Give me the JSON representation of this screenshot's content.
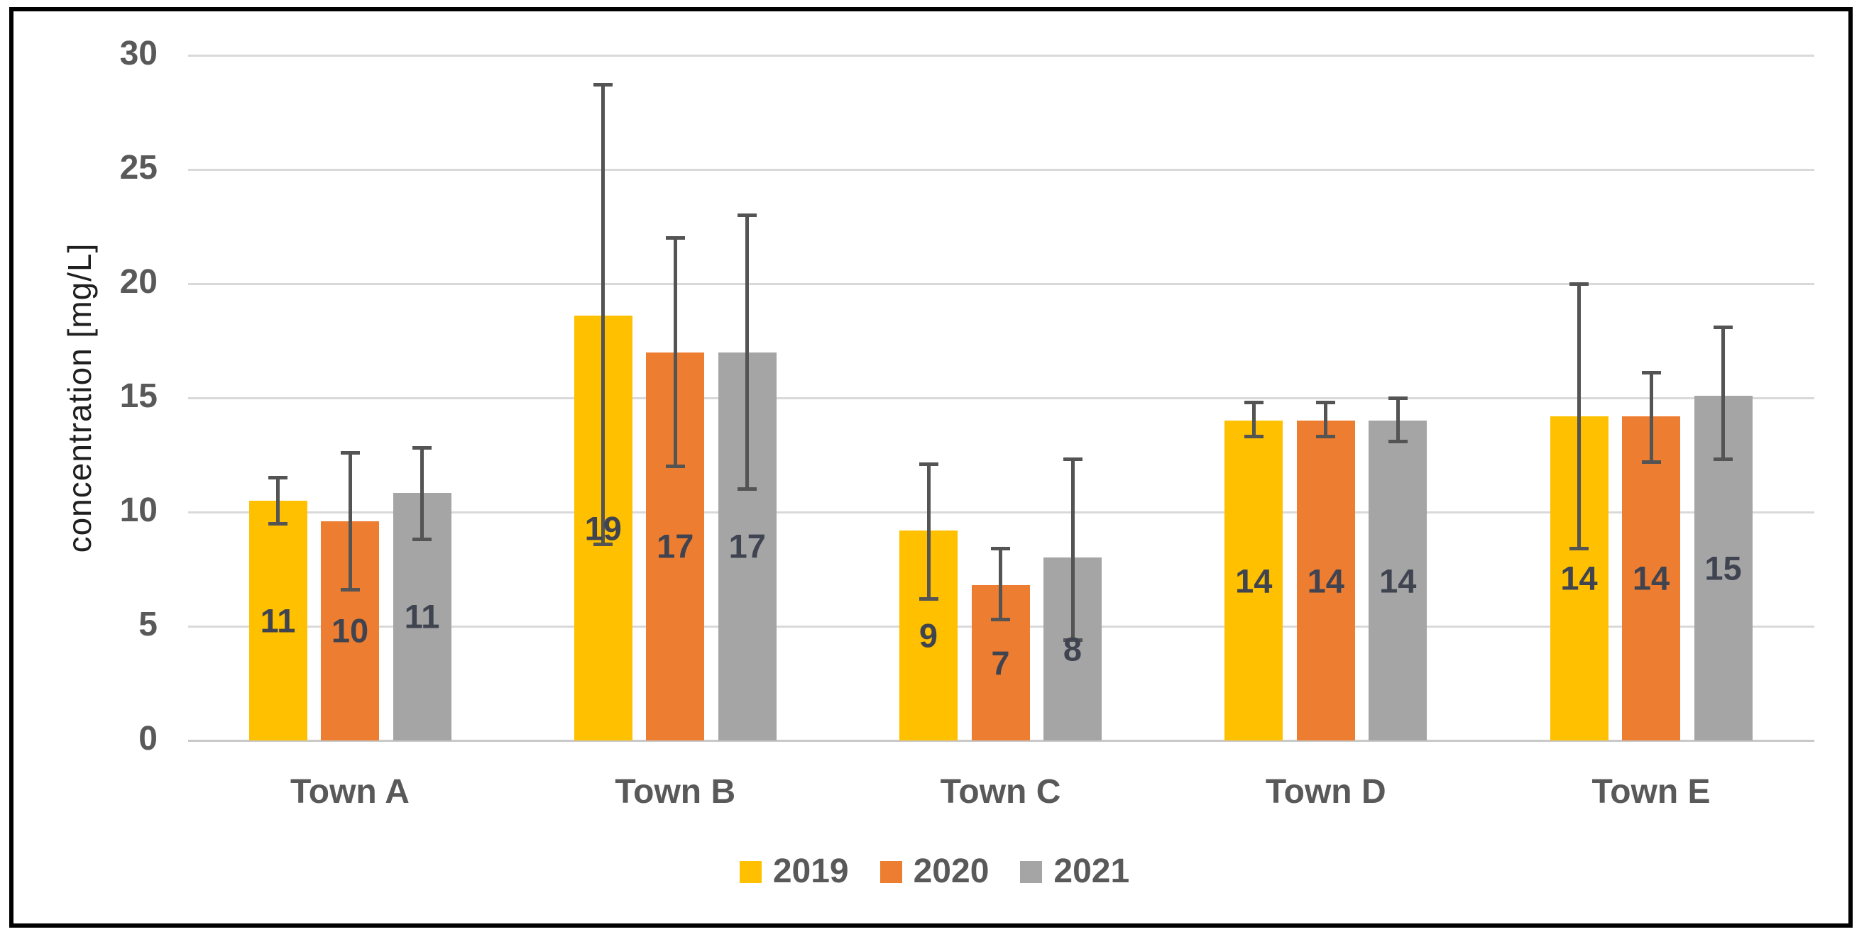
{
  "chart_data": {
    "type": "bar",
    "title": "",
    "xlabel": "",
    "ylabel": "concentration [mg/L]",
    "ylim": [
      0,
      30
    ],
    "ytick_step": 5,
    "ytick_labels": [
      "0",
      "5",
      "10",
      "15",
      "20",
      "25",
      "30"
    ],
    "grid": true,
    "legend_position": "bottom-center",
    "categories": [
      "Town A",
      "Town B",
      "Town C",
      "Town D",
      "Town E"
    ],
    "series": [
      {
        "name": "2019",
        "color": "#FFC000",
        "values": [
          10.5,
          18.6,
          9.2,
          14.0,
          14.2
        ],
        "data_labels": [
          "11",
          "19",
          "9",
          "14",
          "14"
        ],
        "error_low": [
          9.5,
          8.6,
          6.2,
          13.3,
          8.4
        ],
        "error_high": [
          11.5,
          28.7,
          12.1,
          14.8,
          20.0
        ]
      },
      {
        "name": "2020",
        "color": "#ED7D31",
        "values": [
          9.6,
          17.0,
          6.8,
          14.0,
          14.2
        ],
        "data_labels": [
          "10",
          "17",
          "7",
          "14",
          "14"
        ],
        "error_low": [
          6.6,
          12.0,
          5.3,
          13.3,
          12.2
        ],
        "error_high": [
          12.6,
          22.0,
          8.4,
          14.8,
          16.1
        ]
      },
      {
        "name": "2021",
        "color": "#A5A5A5",
        "values": [
          10.85,
          17.0,
          8.0,
          14.0,
          15.1
        ],
        "data_labels": [
          "11",
          "17",
          "8",
          "14",
          "15"
        ],
        "error_low": [
          8.8,
          11.0,
          4.4,
          13.1,
          12.3
        ],
        "error_high": [
          12.8,
          23.0,
          12.3,
          15.0,
          18.1
        ]
      }
    ],
    "colors": {
      "error_bar": "#545454",
      "gridline": "#D9D9D9",
      "baseline": "#C9C9C9",
      "tick_label": "#595959",
      "category_label": "#595959",
      "data_label": "#3F4450",
      "axis_title": "#1F1F1F",
      "legend_text": "#595959",
      "frame_border": "#000000",
      "background": "#FFFFFF"
    }
  }
}
